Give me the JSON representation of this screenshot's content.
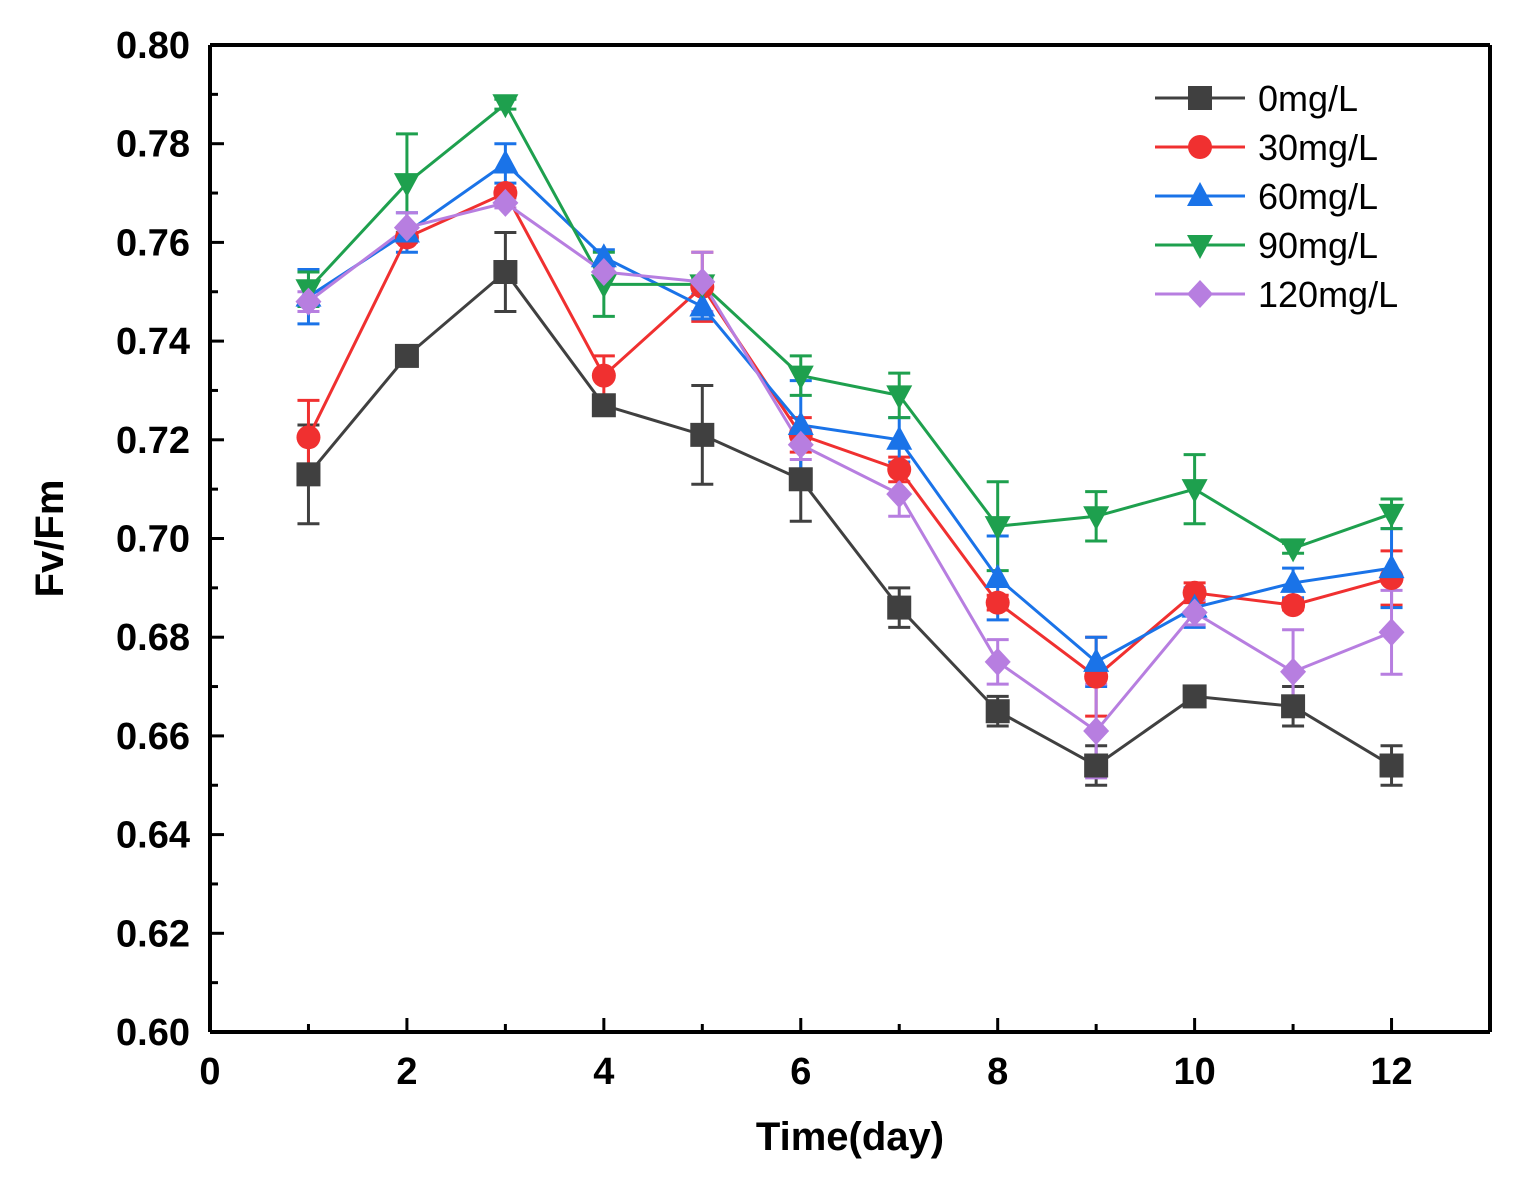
{
  "chart_data": {
    "type": "line",
    "title": "",
    "xlabel": "Time(day)",
    "ylabel": "Fv/Fm",
    "xlim": [
      0,
      13
    ],
    "ylim": [
      0.6,
      0.8
    ],
    "x_ticks": [
      0,
      2,
      4,
      6,
      8,
      10,
      12
    ],
    "x_tick_labels": [
      "0",
      "2",
      "4",
      "6",
      "8",
      "10",
      "12"
    ],
    "y_ticks": [
      0.6,
      0.62,
      0.64,
      0.66,
      0.68,
      0.7,
      0.72,
      0.74,
      0.76,
      0.78,
      0.8
    ],
    "y_tick_labels": [
      "0.60",
      "0.62",
      "0.64",
      "0.66",
      "0.68",
      "0.70",
      "0.72",
      "0.74",
      "0.76",
      "0.78",
      "0.80"
    ],
    "legend_position": "top-right",
    "grid": false,
    "x": [
      1,
      2,
      3,
      4,
      5,
      6,
      7,
      8,
      9,
      10,
      11,
      12
    ],
    "series": [
      {
        "name": "0mg/L",
        "color": "#404040",
        "marker": "square",
        "values": [
          0.713,
          0.737,
          0.754,
          0.727,
          0.721,
          0.712,
          0.686,
          0.665,
          0.654,
          0.668,
          0.666,
          0.654
        ],
        "errors": [
          0.01,
          0.001,
          0.008,
          0.001,
          0.01,
          0.0085,
          0.004,
          0.003,
          0.004,
          0.001,
          0.004,
          0.004
        ]
      },
      {
        "name": "30mg/L",
        "color": "#f03030",
        "marker": "circle",
        "values": [
          0.7205,
          0.761,
          0.77,
          0.733,
          0.751,
          0.721,
          0.714,
          0.687,
          0.672,
          0.689,
          0.6865,
          0.692
        ],
        "errors": [
          0.0075,
          0.001,
          0.001,
          0.004,
          0.007,
          0.0035,
          0.0025,
          0.0015,
          0.008,
          0.002,
          0.001,
          0.0055
        ]
      },
      {
        "name": "60mg/L",
        "color": "#1a73e8",
        "marker": "triangle-up",
        "values": [
          0.749,
          0.762,
          0.776,
          0.757,
          0.747,
          0.723,
          0.72,
          0.692,
          0.675,
          0.686,
          0.691,
          0.694
        ],
        "errors": [
          0.0055,
          0.004,
          0.004,
          0.0015,
          0.0025,
          0.009,
          0.0045,
          0.0085,
          0.005,
          0.004,
          0.003,
          0.008
        ]
      },
      {
        "name": "90mg/L",
        "color": "#1ea04e",
        "marker": "triangle-down",
        "values": [
          0.7505,
          0.772,
          0.788,
          0.7515,
          0.7515,
          0.733,
          0.729,
          0.7025,
          0.7045,
          0.71,
          0.698,
          0.705
        ],
        "errors": [
          0.0035,
          0.01,
          0.001,
          0.0065,
          0.001,
          0.004,
          0.0045,
          0.009,
          0.005,
          0.007,
          0.001,
          0.003
        ]
      },
      {
        "name": "120mg/L",
        "color": "#b77ee0",
        "marker": "diamond",
        "values": [
          0.748,
          0.763,
          0.768,
          0.754,
          0.752,
          0.719,
          0.709,
          0.675,
          0.661,
          0.685,
          0.673,
          0.681
        ],
        "errors": [
          0.002,
          0.003,
          0.001,
          0.001,
          0.006,
          0.003,
          0.0045,
          0.0045,
          0.0095,
          0.0025,
          0.0085,
          0.0085
        ]
      }
    ]
  }
}
